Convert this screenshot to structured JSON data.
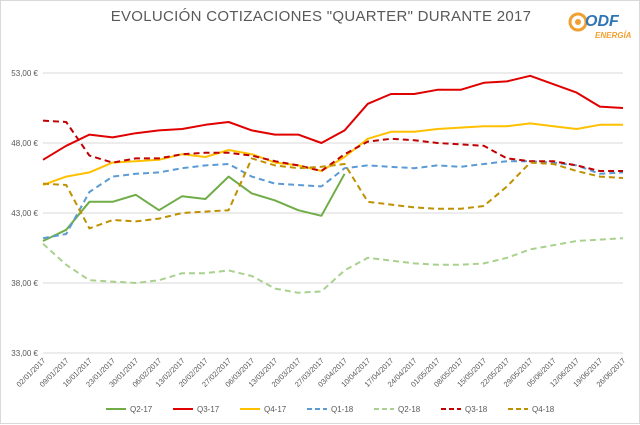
{
  "title": "EVOLUCIÓN COTIZACIONES \"QUARTER\"  DURANTE 2017",
  "logo": {
    "name": "ODF",
    "subtitle": "ENERGÍA",
    "mark_color": "#f0a030",
    "text_color": "#2e75b6"
  },
  "chart_data": {
    "type": "line",
    "title": "EVOLUCIÓN COTIZACIONES \"QUARTER\"  DURANTE 2017",
    "xlabel": "",
    "ylabel": "",
    "ylim": [
      33,
      54
    ],
    "yticks": [
      "33,00 €",
      "38,00 €",
      "43,00 €",
      "48,00 €",
      "53,00 €"
    ],
    "ytick_values": [
      33,
      38,
      43,
      48,
      53
    ],
    "grid": "horizontal",
    "legend": "bottom",
    "x": [
      "02/01/2017",
      "09/01/2017",
      "16/01/2017",
      "23/01/2017",
      "30/01/2017",
      "06/02/2017",
      "13/02/2017",
      "20/02/2017",
      "27/02/2017",
      "06/03/2017",
      "13/03/2017",
      "20/03/2017",
      "27/03/2017",
      "03/04/2017",
      "10/04/2017",
      "17/04/2017",
      "24/04/2017",
      "01/05/2017",
      "08/05/2017",
      "15/05/2017",
      "22/05/2017",
      "29/05/2017",
      "05/06/2017",
      "12/06/2017",
      "19/06/2017",
      "26/06/2017"
    ],
    "series": [
      {
        "name": "Q2-17",
        "color": "#70ad47",
        "dash": "solid",
        "values": [
          41.0,
          41.8,
          43.8,
          43.8,
          44.3,
          43.2,
          44.2,
          44.0,
          45.6,
          44.4,
          43.9,
          43.2,
          42.8,
          45.8,
          null,
          null,
          null,
          null,
          null,
          null,
          null,
          null,
          null,
          null,
          null,
          null
        ]
      },
      {
        "name": "Q3-17",
        "color": "#e00000",
        "dash": "solid",
        "values": [
          46.8,
          47.8,
          48.6,
          48.4,
          48.7,
          48.9,
          49.0,
          49.3,
          49.5,
          48.9,
          48.6,
          48.6,
          48.0,
          48.9,
          50.8,
          51.5,
          51.5,
          51.8,
          51.8,
          52.3,
          52.4,
          52.8,
          52.2,
          51.6,
          50.6,
          50.5
        ]
      },
      {
        "name": "Q4-17",
        "color": "#ffc000",
        "dash": "solid",
        "values": [
          45.0,
          45.6,
          45.9,
          46.6,
          46.7,
          46.8,
          47.2,
          47.0,
          47.5,
          47.2,
          46.6,
          46.4,
          46.0,
          47.0,
          48.3,
          48.8,
          48.8,
          49.0,
          49.1,
          49.2,
          49.2,
          49.4,
          49.2,
          49.0,
          49.3,
          49.3
        ]
      },
      {
        "name": "Q1-18",
        "color": "#5b9bd5",
        "dash": "dash",
        "values": [
          41.2,
          41.5,
          44.5,
          45.6,
          45.8,
          45.9,
          46.2,
          46.4,
          46.5,
          45.6,
          45.1,
          45.0,
          44.9,
          46.2,
          46.4,
          46.3,
          46.2,
          46.4,
          46.3,
          46.5,
          46.7,
          46.7,
          46.6,
          46.4,
          45.8,
          45.9
        ]
      },
      {
        "name": "Q2-18",
        "color": "#a9d18e",
        "dash": "dash",
        "values": [
          40.8,
          39.3,
          38.2,
          38.1,
          38.0,
          38.2,
          38.7,
          38.7,
          38.9,
          38.5,
          37.6,
          37.3,
          37.4,
          38.9,
          39.8,
          39.6,
          39.4,
          39.3,
          39.3,
          39.4,
          39.8,
          40.4,
          40.7,
          41.0,
          41.1,
          41.2
        ]
      },
      {
        "name": "Q3-18",
        "color": "#c00000",
        "dash": "dash",
        "values": [
          49.6,
          49.5,
          47.1,
          46.6,
          46.9,
          46.9,
          47.2,
          47.3,
          47.3,
          47.1,
          46.7,
          46.4,
          46.0,
          47.2,
          48.1,
          48.3,
          48.2,
          48.0,
          47.9,
          47.8,
          46.9,
          46.7,
          46.7,
          46.4,
          46.0,
          46.0
        ]
      },
      {
        "name": "Q4-18",
        "color": "#bf9000",
        "dash": "dash",
        "values": [
          45.1,
          45.0,
          41.9,
          42.5,
          42.4,
          42.6,
          43.0,
          43.1,
          43.2,
          46.9,
          46.4,
          46.2,
          46.3,
          46.5,
          43.8,
          43.6,
          43.4,
          43.3,
          43.3,
          43.5,
          44.9,
          46.6,
          46.5,
          46.0,
          45.6,
          45.5
        ]
      }
    ]
  }
}
